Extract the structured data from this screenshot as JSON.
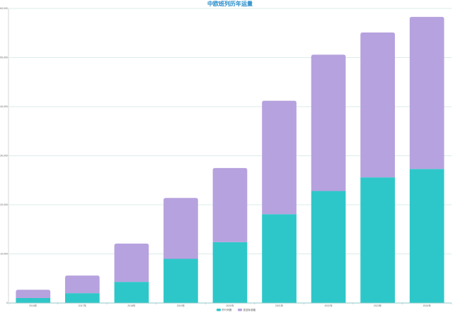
{
  "chart_data": {
    "type": "bar",
    "stacked": true,
    "title": "中欧班列历年运量",
    "xlabel": "",
    "ylabel": "",
    "categories": [
      "2016年",
      "2017年",
      "2018年",
      "2019年",
      "2020年",
      "2021年",
      "2022年",
      "2023年",
      "2024年"
    ],
    "series": [
      {
        "name": "开行列数",
        "color": "#2ec7c9",
        "values": [
          1000,
          2000,
          4300,
          9000,
          12400,
          18100,
          22800,
          25600,
          27300
        ]
      },
      {
        "name": "发送标准箱",
        "color": "#b6a2de",
        "values": [
          1700,
          3600,
          7800,
          12400,
          15100,
          23100,
          27800,
          29500,
          31000
        ]
      }
    ],
    "ylim": [
      0,
      60000
    ],
    "yticks": [
      "0",
      "10,000",
      "20,000",
      "30,000",
      "40,000",
      "50,000",
      "60,000"
    ],
    "grid": true,
    "legend_position": "bottom-center"
  }
}
